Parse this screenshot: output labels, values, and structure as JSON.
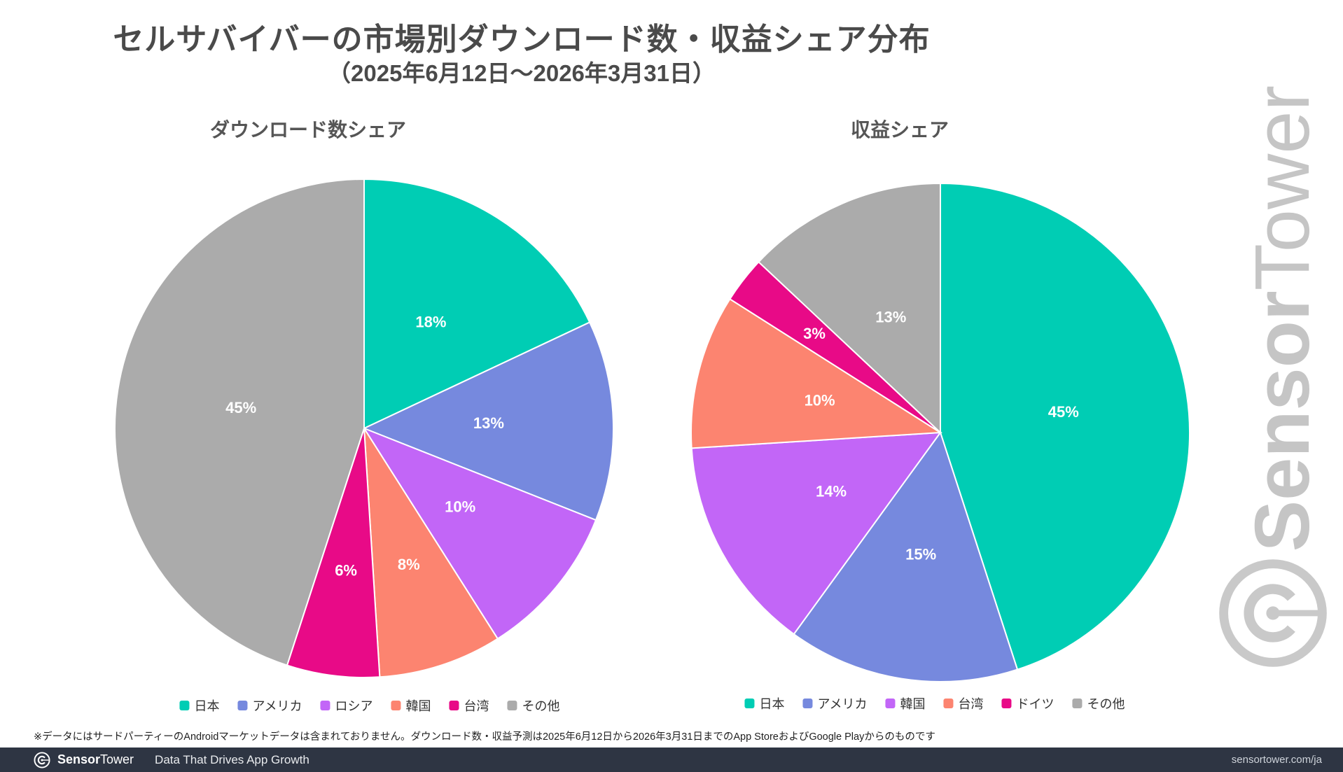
{
  "page": {
    "title": "セルサバイバーの市場別ダウンロード数・収益シェア分布",
    "subtitle": "（2025年6月12日〜2026年3月31日）",
    "footnote": "※データにはサードパーティーのAndroidマーケットデータは含まれておりません。ダウンロード数・収益予測は2025年6月12日から2026年3月31日までのApp StoreおよびGoogle Playからのものです",
    "title_color": "#4A4A4A"
  },
  "watermark": {
    "brand_bold": "Sensor",
    "brand_light": "Tower",
    "color": "#C5C5C5"
  },
  "footer": {
    "brand_bold": "Sensor",
    "brand_light": "Tower",
    "tagline": "Data That Drives App Growth",
    "url": "sensortower.com/ja",
    "bg_color": "#2E3543"
  },
  "palette": {
    "teal": "#00CDB4",
    "blue": "#7689DE",
    "purple": "#C266F7",
    "salmon": "#FC8470",
    "magenta": "#E80A87",
    "gray": "#ABABAB"
  },
  "chart_data": [
    {
      "type": "pie",
      "title": "ダウンロード数シェア",
      "labels": [
        "日本",
        "アメリカ",
        "ロシア",
        "韓国",
        "台湾",
        "その他"
      ],
      "values": [
        18,
        13,
        10,
        8,
        6,
        45
      ],
      "data_labels": [
        "18%",
        "13%",
        "10%",
        "8%",
        "6%",
        "45%"
      ],
      "colors": [
        "#00CDB4",
        "#7689DE",
        "#C266F7",
        "#FC8470",
        "#E80A87",
        "#ABABAB"
      ],
      "start_angle_deg": 0,
      "direction": "clockwise",
      "legend_position": "bottom"
    },
    {
      "type": "pie",
      "title": "収益シェア",
      "labels": [
        "日本",
        "アメリカ",
        "韓国",
        "台湾",
        "ドイツ",
        "その他"
      ],
      "values": [
        45,
        15,
        14,
        10,
        3,
        13
      ],
      "data_labels": [
        "45%",
        "15%",
        "14%",
        "10%",
        "3%",
        "13%"
      ],
      "colors": [
        "#00CDB4",
        "#7689DE",
        "#C266F7",
        "#FC8470",
        "#E80A87",
        "#ABABAB"
      ],
      "start_angle_deg": 0,
      "direction": "clockwise",
      "legend_position": "bottom"
    }
  ]
}
